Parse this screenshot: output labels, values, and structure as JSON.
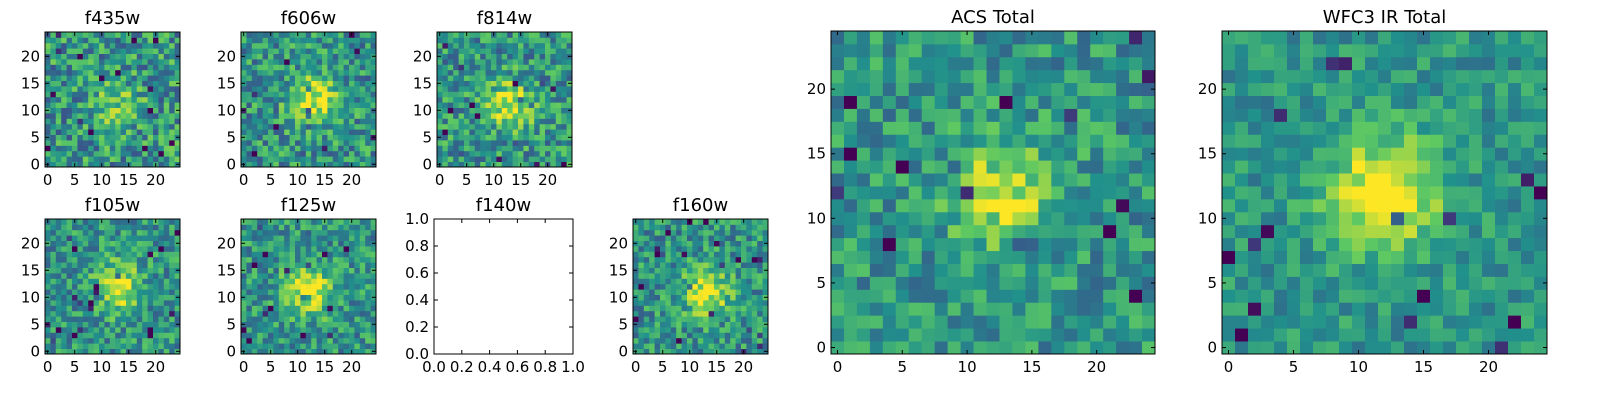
{
  "figure": {
    "colormap": [
      "#440154",
      "#3b528b",
      "#21918c",
      "#5ec962",
      "#fde725"
    ],
    "background": "#ffffff"
  },
  "chart_data": [
    {
      "type": "heatmap",
      "title": "f435w",
      "xticks": [
        "0",
        "5",
        "10",
        "15",
        "20"
      ],
      "yticks": [
        "0",
        "5",
        "10",
        "15",
        "20"
      ],
      "xlim": [
        -0.5,
        24.5
      ],
      "ylim": [
        -0.5,
        24.5
      ],
      "grid_size": 25,
      "peak": {
        "x": 13,
        "y": 11
      },
      "contrast": 0.25,
      "noise": 0.55
    },
    {
      "type": "heatmap",
      "title": "f606w",
      "xticks": [
        "0",
        "5",
        "10",
        "15",
        "20"
      ],
      "yticks": [
        "0",
        "5",
        "10",
        "15",
        "20"
      ],
      "xlim": [
        -0.5,
        24.5
      ],
      "ylim": [
        -0.5,
        24.5
      ],
      "grid_size": 25,
      "peak": {
        "x": 13,
        "y": 12
      },
      "contrast": 0.45,
      "noise": 0.5
    },
    {
      "type": "heatmap",
      "title": "f814w",
      "xticks": [
        "0",
        "5",
        "10",
        "15",
        "20"
      ],
      "yticks": [
        "0",
        "5",
        "10",
        "15",
        "20"
      ],
      "xlim": [
        -0.5,
        24.5
      ],
      "ylim": [
        -0.5,
        24.5
      ],
      "grid_size": 25,
      "peak": {
        "x": 13,
        "y": 11
      },
      "contrast": 0.45,
      "noise": 0.5
    },
    {
      "type": "heatmap",
      "title": "f105w",
      "xticks": [
        "0",
        "5",
        "10",
        "15",
        "20"
      ],
      "yticks": [
        "0",
        "5",
        "10",
        "15",
        "20"
      ],
      "xlim": [
        -0.5,
        24.5
      ],
      "ylim": [
        -0.5,
        24.5
      ],
      "grid_size": 25,
      "peak": {
        "x": 13,
        "y": 12
      },
      "contrast": 0.45,
      "noise": 0.45
    },
    {
      "type": "heatmap",
      "title": "f125w",
      "xticks": [
        "0",
        "5",
        "10",
        "15",
        "20"
      ],
      "yticks": [
        "0",
        "5",
        "10",
        "15",
        "20"
      ],
      "xlim": [
        -0.5,
        24.5
      ],
      "ylim": [
        -0.5,
        24.5
      ],
      "grid_size": 25,
      "peak": {
        "x": 12,
        "y": 11
      },
      "contrast": 0.45,
      "noise": 0.45
    },
    {
      "type": "empty",
      "title": "f140w",
      "xticks": [
        "0.0",
        "0.2",
        "0.4",
        "0.6",
        "0.8",
        "1.0"
      ],
      "yticks": [
        "0.0",
        "0.2",
        "0.4",
        "0.6",
        "0.8",
        "1.0"
      ],
      "xlim": [
        0,
        1
      ],
      "ylim": [
        0,
        1
      ]
    },
    {
      "type": "heatmap",
      "title": "f160w",
      "xticks": [
        "0",
        "5",
        "10",
        "15",
        "20"
      ],
      "yticks": [
        "0",
        "5",
        "10",
        "15",
        "20"
      ],
      "xlim": [
        -0.5,
        24.5
      ],
      "ylim": [
        -0.5,
        24.5
      ],
      "grid_size": 25,
      "peak": {
        "x": 13,
        "y": 11
      },
      "contrast": 0.45,
      "noise": 0.45
    },
    {
      "type": "heatmap",
      "title": "ACS Total",
      "xticks": [
        "0",
        "5",
        "10",
        "15",
        "20"
      ],
      "yticks": [
        "0",
        "5",
        "10",
        "15",
        "20"
      ],
      "xlim": [
        -0.5,
        24.5
      ],
      "ylim": [
        -0.5,
        24.5
      ],
      "grid_size": 25,
      "peak": {
        "x": 13,
        "y": 12
      },
      "contrast": 0.4,
      "noise": 0.4
    },
    {
      "type": "heatmap",
      "title": "WFC3 IR Total",
      "xticks": [
        "0",
        "5",
        "10",
        "15",
        "20"
      ],
      "yticks": [
        "0",
        "5",
        "10",
        "15",
        "20"
      ],
      "xlim": [
        -0.5,
        24.5
      ],
      "ylim": [
        -0.5,
        24.5
      ],
      "grid_size": 25,
      "peak": {
        "x": 12,
        "y": 12
      },
      "contrast": 0.55,
      "noise": 0.3
    }
  ]
}
